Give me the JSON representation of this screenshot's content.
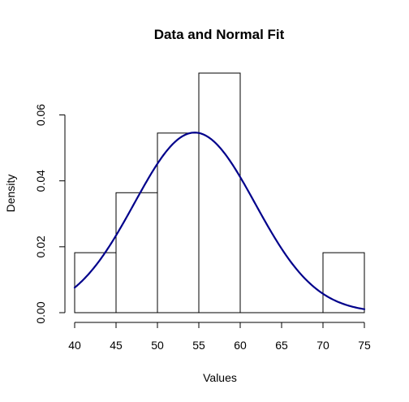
{
  "chart_data": {
    "type": "bar",
    "title": "Data and Normal Fit",
    "xlabel": "Values",
    "ylabel": "Density",
    "xlim": [
      40,
      75
    ],
    "ylim": [
      0,
      0.0727
    ],
    "x_ticks": [
      40,
      45,
      50,
      55,
      60,
      65,
      70,
      75
    ],
    "x_tick_labels": [
      "40",
      "45",
      "50",
      "55",
      "60",
      "65",
      "70",
      "75"
    ],
    "y_ticks": [
      0,
      0.02,
      0.04,
      0.06
    ],
    "y_tick_labels": [
      "0.00",
      "0.02",
      "0.04",
      "0.06"
    ],
    "bins": [
      {
        "start": 40,
        "end": 45,
        "density": 0.0182
      },
      {
        "start": 45,
        "end": 50,
        "density": 0.0364
      },
      {
        "start": 50,
        "end": 55,
        "density": 0.0545
      },
      {
        "start": 55,
        "end": 60,
        "density": 0.0727
      },
      {
        "start": 60,
        "end": 65,
        "density": 0
      },
      {
        "start": 65,
        "end": 70,
        "density": 0
      },
      {
        "start": 70,
        "end": 75,
        "density": 0.0182
      }
    ],
    "normal_fit": {
      "mean": 54.5,
      "sd": 7.3,
      "color": "#00008B"
    },
    "grid": false
  }
}
